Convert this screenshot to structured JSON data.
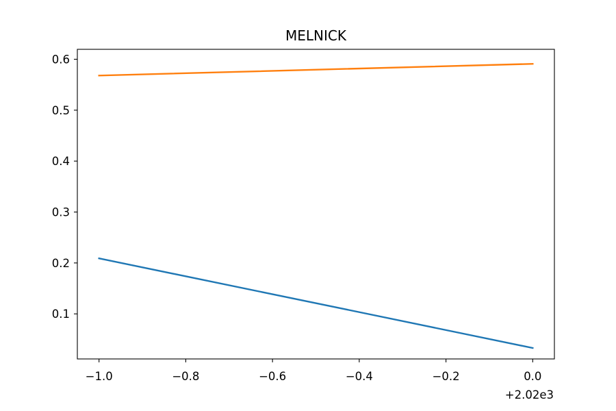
{
  "chart_data": {
    "type": "line",
    "title": "MELNICK",
    "xlabel": "",
    "ylabel": "",
    "x_offset_label": "+2.02e3",
    "xlim": [
      2018.95,
      2020.05
    ],
    "ylim": [
      0.0115,
      0.6195
    ],
    "x_ticks": [
      2019.0,
      2019.2,
      2019.4,
      2019.6,
      2019.8,
      2020.0
    ],
    "x_tick_labels": [
      "−1.0",
      "−0.8",
      "−0.6",
      "−0.4",
      "−0.2",
      "0.0"
    ],
    "y_ticks": [
      0.1,
      0.2,
      0.3,
      0.4,
      0.5,
      0.6
    ],
    "y_tick_labels": [
      "0.1",
      "0.2",
      "0.3",
      "0.4",
      "0.5",
      "0.6"
    ],
    "grid": false,
    "x": [
      2019,
      2020
    ],
    "series": [
      {
        "color": "#1f77b4",
        "values": [
          0.209,
          0.033
        ]
      },
      {
        "color": "#ff7f0e",
        "values": [
          0.568,
          0.591
        ]
      }
    ]
  }
}
